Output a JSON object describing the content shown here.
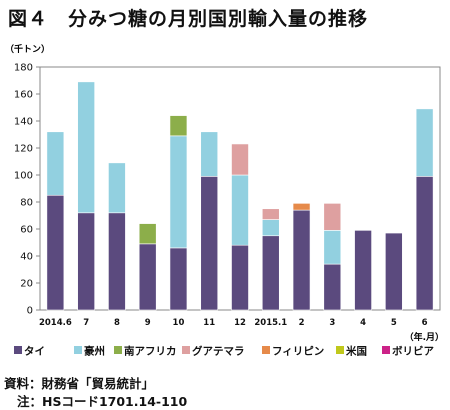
{
  "figure": {
    "title": "図４　分みつ糖の月別国別輸入量の推移",
    "source": "資料：財務省「貿易統計」",
    "note": "注：HSコード1701.14-110"
  },
  "chart_data": {
    "type": "bar",
    "stacked": true,
    "ylabel": "（千トン）",
    "xlabel": "（年.月）",
    "ylim": [
      0,
      180
    ],
    "yticks": [
      0,
      20,
      40,
      60,
      80,
      100,
      120,
      140,
      160,
      180
    ],
    "grid": false,
    "legend_position": "bottom",
    "categories": [
      "2014.6",
      "7",
      "8",
      "9",
      "10",
      "11",
      "12",
      "2015.1",
      "2",
      "3",
      "4",
      "5",
      "6"
    ],
    "series": [
      {
        "name": "タイ",
        "color": "#5b4a7e",
        "values": [
          85,
          72,
          72,
          49,
          46,
          99,
          48,
          55,
          74,
          34,
          59,
          57,
          99
        ]
      },
      {
        "name": "豪州",
        "color": "#92d0e0",
        "values": [
          47,
          97,
          37,
          0,
          83,
          33,
          52,
          12,
          0,
          25,
          0,
          0,
          50
        ]
      },
      {
        "name": "南アフリカ",
        "color": "#8cae4a",
        "values": [
          0,
          0,
          0,
          15,
          15,
          0,
          0,
          0,
          0,
          0,
          0,
          0,
          0
        ]
      },
      {
        "name": "グアテマラ",
        "color": "#dea0a0",
        "values": [
          0,
          0,
          0,
          0,
          0,
          0,
          23,
          8,
          0,
          20,
          0,
          0,
          0
        ]
      },
      {
        "name": "フィリピン",
        "color": "#e68a4a",
        "values": [
          0,
          0,
          0,
          0,
          0,
          0,
          0,
          0,
          5,
          0,
          0,
          0,
          0
        ]
      },
      {
        "name": "米国",
        "color": "#c0c81c",
        "values": [
          0,
          0,
          0,
          0,
          0,
          0,
          0,
          0,
          0,
          0,
          0,
          0,
          0
        ]
      },
      {
        "name": "ボリビア",
        "color": "#cc2288",
        "values": [
          0,
          0,
          0,
          0,
          0,
          0,
          0,
          0,
          0,
          0,
          0,
          0,
          0
        ]
      }
    ]
  }
}
